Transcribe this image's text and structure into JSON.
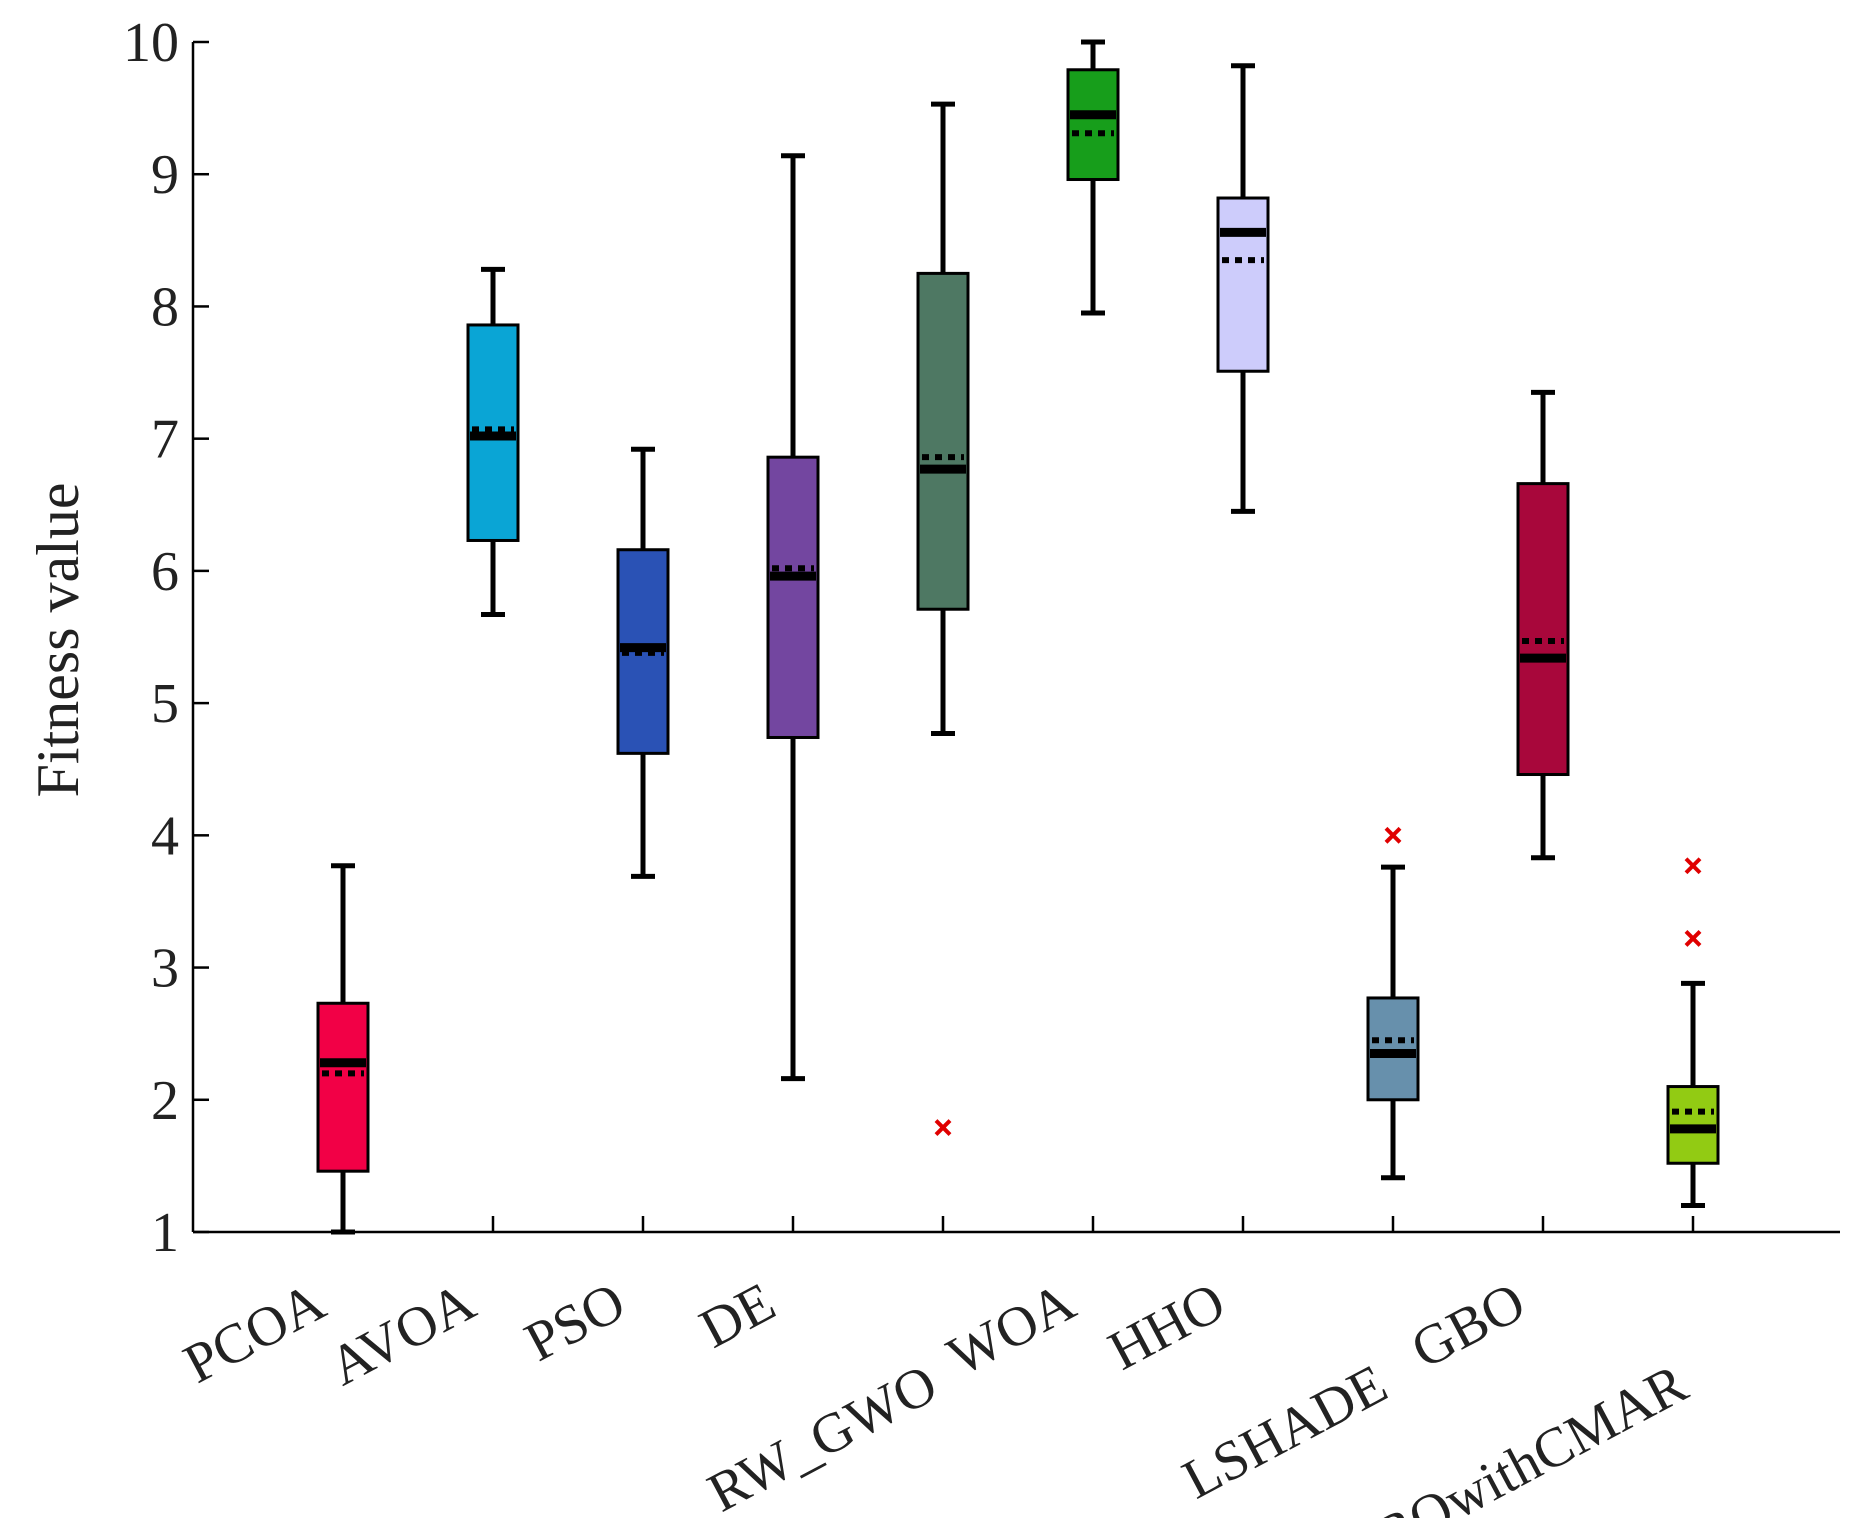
{
  "chart_data": {
    "type": "boxplot",
    "title": "",
    "xlabel": "",
    "ylabel": "Fitness value",
    "ylim": [
      1,
      10
    ],
    "yticks": [
      1,
      2,
      3,
      4,
      5,
      6,
      7,
      8,
      9,
      10
    ],
    "grid": false,
    "legend": "none",
    "series": [
      {
        "name": "PCOA",
        "color": "#F20046",
        "whisker_low": 1.0,
        "q1": 1.46,
        "median": 2.28,
        "mean": 2.2,
        "q3": 2.73,
        "whisker_high": 3.77,
        "outliers": []
      },
      {
        "name": "AVOA",
        "color": "#0AA5D5",
        "whisker_low": 5.67,
        "q1": 6.23,
        "median": 7.02,
        "mean": 7.07,
        "q3": 7.86,
        "whisker_high": 8.28,
        "outliers": []
      },
      {
        "name": "PSO",
        "color": "#2A52B5",
        "whisker_low": 3.69,
        "q1": 4.62,
        "median": 5.42,
        "mean": 5.38,
        "q3": 6.16,
        "whisker_high": 6.92,
        "outliers": []
      },
      {
        "name": "DE",
        "color": "#7346A0",
        "whisker_low": 2.16,
        "q1": 4.74,
        "median": 5.96,
        "mean": 6.02,
        "q3": 6.86,
        "whisker_high": 9.14,
        "outliers": []
      },
      {
        "name": "RW_GWO",
        "color": "#4E7863",
        "whisker_low": 4.77,
        "q1": 5.71,
        "median": 6.77,
        "mean": 6.86,
        "q3": 8.25,
        "whisker_high": 9.53,
        "outliers": [
          1.79
        ]
      },
      {
        "name": "WOA",
        "color": "#179E1B",
        "whisker_low": 7.95,
        "q1": 8.96,
        "median": 9.45,
        "mean": 9.31,
        "q3": 9.79,
        "whisker_high": 10.0,
        "outliers": []
      },
      {
        "name": "HHO",
        "color": "#CDCCFB",
        "whisker_low": 6.45,
        "q1": 7.51,
        "median": 8.56,
        "mean": 8.35,
        "q3": 8.82,
        "whisker_high": 9.82,
        "outliers": []
      },
      {
        "name": "LSHADE",
        "color": "#6790AC",
        "whisker_low": 1.41,
        "q1": 2.0,
        "median": 2.35,
        "mean": 2.45,
        "q3": 2.77,
        "whisker_high": 3.76,
        "outliers": [
          4.0
        ]
      },
      {
        "name": "GBO",
        "color": "#A8073B",
        "whisker_low": 3.83,
        "q1": 4.46,
        "median": 5.34,
        "mean": 5.47,
        "q3": 6.66,
        "whisker_high": 7.35,
        "outliers": []
      },
      {
        "name": "EBOwithCMAR",
        "color": "#92CB13",
        "whisker_low": 1.2,
        "q1": 1.52,
        "median": 1.78,
        "mean": 1.91,
        "q3": 2.1,
        "whisker_high": 2.88,
        "outliers": [
          3.22,
          3.77
        ]
      }
    ]
  }
}
